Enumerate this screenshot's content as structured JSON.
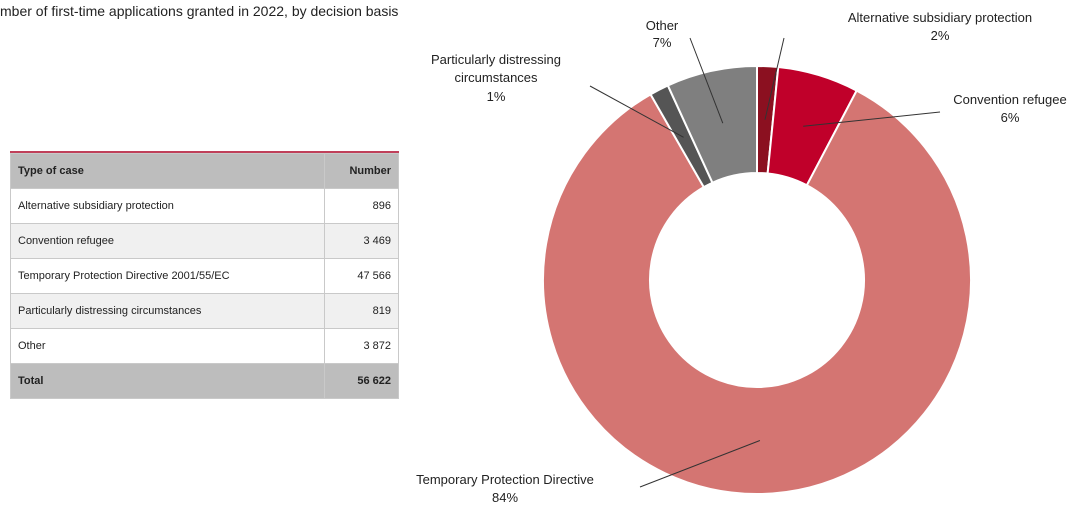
{
  "title": "mber  of first-time applications granted in 2022, by decision basis",
  "table": {
    "headers": [
      "Type of case",
      "Number"
    ],
    "rows": [
      {
        "type": "Alternative  subsidiary protection",
        "number": "896"
      },
      {
        "type": "Convention refugee",
        "number": "3 469"
      },
      {
        "type": "Temporary Protection Directive 2001/55/EC",
        "number": "47 566"
      },
      {
        "type": "Particularly distressing circumstances",
        "number": "819"
      },
      {
        "type": "Other",
        "number": "3 872"
      }
    ],
    "total": {
      "label": "Total",
      "number": "56 622"
    }
  },
  "chart_data": {
    "type": "pie",
    "title": "mber  of first-time applications granted in 2022, by decision basis",
    "donut": true,
    "slices": [
      {
        "name": "Alternative subsidiary protection",
        "value": 896,
        "label": "2%",
        "color": "#8b1020"
      },
      {
        "name": "Convention refugee",
        "value": 3469,
        "label": "6%",
        "color": "#c0002a"
      },
      {
        "name": "Temporary Protection Directive",
        "value": 47566,
        "label": "84%",
        "color": "#d47572"
      },
      {
        "name": "Particularly distressing circumstances",
        "value": 819,
        "label": "1%",
        "color": "#555555"
      },
      {
        "name": "Other",
        "value": 3872,
        "label": "7%",
        "color": "#7f7f7f"
      }
    ]
  }
}
